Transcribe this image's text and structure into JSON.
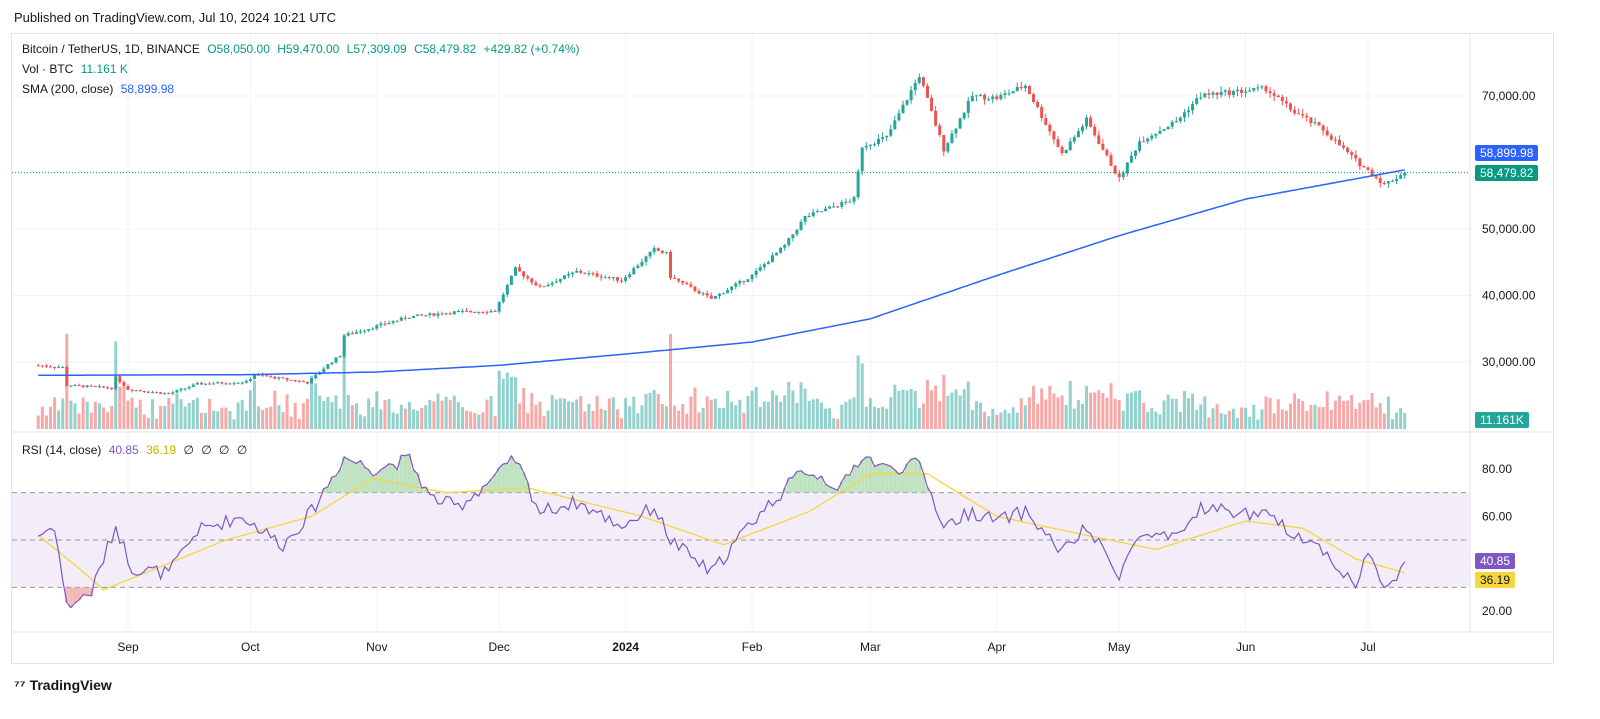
{
  "published": "Published on TradingView.com, Jul 10, 2024 10:21 UTC",
  "legend": {
    "symbol": "Bitcoin / TetherUS, 1D, BINANCE",
    "open": "O58,050.00",
    "high": "H59,470.00",
    "low": "L57,309.09",
    "close": "C58,479.82",
    "change": "+429.82 (+0.74%)",
    "vol_label": "Vol · BTC",
    "vol_value": "11.161 K",
    "sma_label": "SMA (200, close)",
    "sma_value": "58,899.98",
    "rsi_label": "RSI (14, close)",
    "rsi_value": "40.85",
    "rsi_ma_value": "36.19",
    "rsi_extra": [
      "∅",
      "∅",
      "∅",
      "∅"
    ]
  },
  "badges": {
    "sma": "58,899.98",
    "price": "58,479.82",
    "volume": "11.161K",
    "rsi": "40.85",
    "rsi_ma": "36.19"
  },
  "colors": {
    "up": "#26a69a",
    "down": "#ef5350",
    "sma": "#2962ff",
    "rsi": "#7e57c2",
    "rsi_ma": "#f5d63d",
    "rsi_band": "#ede7f6"
  },
  "footer": {
    "logo_text": "TradingView"
  },
  "chart_data": [
    {
      "type": "candlestick",
      "title": "Bitcoin / TetherUS, 1D, BINANCE",
      "x_ticks": [
        "Sep",
        "Oct",
        "Nov",
        "Dec",
        "2024",
        "Feb",
        "Mar",
        "Apr",
        "May",
        "Jun",
        "Jul"
      ],
      "y_ticks": [
        30000,
        40000,
        50000,
        70000
      ],
      "ylim": [
        20000,
        75000
      ],
      "series": [
        {
          "name": "BTCUSDT price (approx. daily close)",
          "anchors": [
            [
              "2023-08-10",
              29500
            ],
            [
              "2023-08-16",
              29200
            ],
            [
              "2023-08-17",
              26500
            ],
            [
              "2023-08-28",
              26100
            ],
            [
              "2023-08-29",
              27700
            ],
            [
              "2023-09-01",
              25900
            ],
            [
              "2023-09-11",
              25200
            ],
            [
              "2023-09-18",
              26700
            ],
            [
              "2023-09-30",
              27000
            ],
            [
              "2023-10-02",
              28100
            ],
            [
              "2023-10-15",
              26900
            ],
            [
              "2023-10-20",
              29600
            ],
            [
              "2023-10-23",
              31000
            ],
            [
              "2023-10-24",
              34000
            ],
            [
              "2023-11-01",
              35400
            ],
            [
              "2023-11-09",
              36800
            ],
            [
              "2023-11-20",
              37500
            ],
            [
              "2023-11-30",
              37700
            ],
            [
              "2023-12-05",
              44000
            ],
            [
              "2023-12-11",
              41200
            ],
            [
              "2023-12-20",
              43600
            ],
            [
              "2023-12-31",
              42300
            ],
            [
              "2024-01-08",
              46900
            ],
            [
              "2024-01-11",
              46300
            ],
            [
              "2024-01-12",
              42800
            ],
            [
              "2024-01-22",
              39500
            ],
            [
              "2024-02-01",
              43000
            ],
            [
              "2024-02-09",
              47500
            ],
            [
              "2024-02-14",
              51800
            ],
            [
              "2024-02-26",
              54500
            ],
            [
              "2024-02-28",
              62500
            ],
            [
              "2024-03-05",
              63800
            ],
            [
              "2024-03-13",
              73100
            ],
            [
              "2024-03-19",
              62000
            ],
            [
              "2024-03-26",
              70000
            ],
            [
              "2024-04-01",
              69700
            ],
            [
              "2024-04-08",
              71600
            ],
            [
              "2024-04-12",
              67000
            ],
            [
              "2024-04-17",
              61300
            ],
            [
              "2024-04-23",
              66400
            ],
            [
              "2024-05-01",
              57500
            ],
            [
              "2024-05-06",
              63200
            ],
            [
              "2024-05-15",
              66200
            ],
            [
              "2024-05-21",
              70100
            ],
            [
              "2024-06-06",
              71100
            ],
            [
              "2024-06-12",
              68000
            ],
            [
              "2024-06-20",
              64900
            ],
            [
              "2024-06-28",
              60300
            ],
            [
              "2024-07-05",
              56700
            ],
            [
              "2024-07-10",
              58480
            ]
          ]
        },
        {
          "name": "SMA (200, close)",
          "anchors": [
            [
              "2023-08-10",
              28000
            ],
            [
              "2023-10-01",
              28100
            ],
            [
              "2023-11-01",
              28500
            ],
            [
              "2023-12-01",
              29500
            ],
            [
              "2024-01-01",
              31200
            ],
            [
              "2024-02-01",
              33000
            ],
            [
              "2024-03-01",
              36500
            ],
            [
              "2024-04-01",
              43000
            ],
            [
              "2024-05-01",
              49000
            ],
            [
              "2024-06-01",
              54500
            ],
            [
              "2024-07-10",
              58900
            ]
          ]
        }
      ]
    },
    {
      "type": "bar",
      "title": "Vol · BTC",
      "last_value": 11161
    },
    {
      "type": "line",
      "title": "RSI (14, close)",
      "y_ticks": [
        20,
        60,
        80
      ],
      "ylim": [
        10,
        90
      ],
      "bands": {
        "upper": 70,
        "middle": 50,
        "lower": 30
      },
      "series": [
        {
          "name": "RSI",
          "anchors": [
            [
              "2023-08-10",
              52
            ],
            [
              "2023-08-14",
              56
            ],
            [
              "2023-08-17",
              22
            ],
            [
              "2023-08-23",
              28
            ],
            [
              "2023-08-29",
              56
            ],
            [
              "2023-09-02",
              38
            ],
            [
              "2023-09-11",
              36
            ],
            [
              "2023-09-18",
              54
            ],
            [
              "2023-09-29",
              60
            ],
            [
              "2023-10-09",
              48
            ],
            [
              "2023-10-16",
              62
            ],
            [
              "2023-10-24",
              85
            ],
            [
              "2023-10-31",
              80
            ],
            [
              "2023-11-09",
              84
            ],
            [
              "2023-11-14",
              68
            ],
            [
              "2023-11-21",
              64
            ],
            [
              "2023-12-05",
              84
            ],
            [
              "2023-12-11",
              62
            ],
            [
              "2023-12-20",
              66
            ],
            [
              "2023-12-31",
              56
            ],
            [
              "2024-01-08",
              64
            ],
            [
              "2024-01-12",
              50
            ],
            [
              "2024-01-22",
              36
            ],
            [
              "2024-02-01",
              58
            ],
            [
              "2024-02-14",
              80
            ],
            [
              "2024-02-23",
              72
            ],
            [
              "2024-02-28",
              86
            ],
            [
              "2024-03-05",
              80
            ],
            [
              "2024-03-13",
              82
            ],
            [
              "2024-03-19",
              56
            ],
            [
              "2024-03-26",
              62
            ],
            [
              "2024-04-01",
              58
            ],
            [
              "2024-04-08",
              62
            ],
            [
              "2024-04-17",
              45
            ],
            [
              "2024-04-23",
              55
            ],
            [
              "2024-05-01",
              36
            ],
            [
              "2024-05-06",
              52
            ],
            [
              "2024-05-15",
              50
            ],
            [
              "2024-05-21",
              64
            ],
            [
              "2024-06-06",
              60
            ],
            [
              "2024-06-12",
              54
            ],
            [
              "2024-06-20",
              46
            ],
            [
              "2024-06-28",
              30
            ],
            [
              "2024-07-01",
              46
            ],
            [
              "2024-07-05",
              28
            ],
            [
              "2024-07-10",
              40.85
            ]
          ]
        },
        {
          "name": "RSI-based MA",
          "anchors": [
            [
              "2023-08-10",
              52
            ],
            [
              "2023-08-20",
              38
            ],
            [
              "2023-08-26",
              29
            ],
            [
              "2023-09-08",
              38
            ],
            [
              "2023-09-25",
              50
            ],
            [
              "2023-10-16",
              60
            ],
            [
              "2023-10-31",
              76
            ],
            [
              "2023-11-18",
              70
            ],
            [
              "2023-12-08",
              72
            ],
            [
              "2024-01-05",
              60
            ],
            [
              "2024-01-25",
              48
            ],
            [
              "2024-02-15",
              62
            ],
            [
              "2024-03-01",
              78
            ],
            [
              "2024-03-15",
              78
            ],
            [
              "2024-04-01",
              60
            ],
            [
              "2024-04-23",
              52
            ],
            [
              "2024-05-10",
              46
            ],
            [
              "2024-06-01",
              58
            ],
            [
              "2024-06-15",
              55
            ],
            [
              "2024-06-28",
              42
            ],
            [
              "2024-07-10",
              36.19
            ]
          ]
        }
      ]
    }
  ]
}
